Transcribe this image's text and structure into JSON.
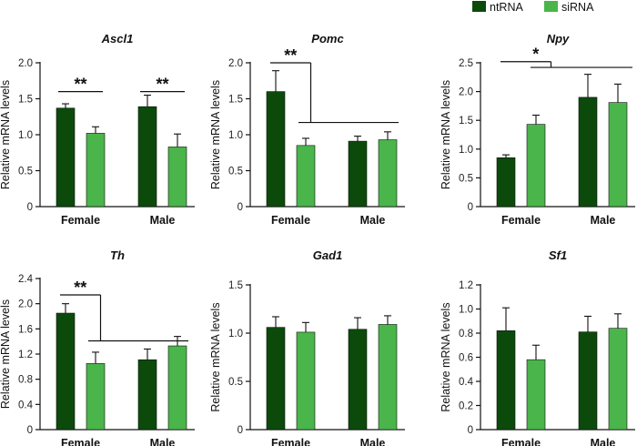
{
  "legend": {
    "items": [
      {
        "label": "ntRNA",
        "color": "#0b4a0b"
      },
      {
        "label": "siRNA",
        "color": "#4ab54a"
      }
    ]
  },
  "chart_data": [
    {
      "type": "bar",
      "title": "Ascl1",
      "ylabel": "Relative mRNA levels",
      "categories": [
        "Female",
        "Male"
      ],
      "ylim": [
        0,
        2.0
      ],
      "yticks": [
        "0",
        "0.5",
        "1.0",
        "1.5",
        "2.0"
      ],
      "series": [
        {
          "name": "ntRNA",
          "values": [
            1.37,
            1.39
          ],
          "errors": [
            0.06,
            0.16
          ]
        },
        {
          "name": "siRNA",
          "values": [
            1.02,
            0.83
          ],
          "errors": [
            0.09,
            0.18
          ]
        }
      ],
      "annotations": [
        {
          "label": "**",
          "kind": "pair",
          "group": 0,
          "level": 1.6
        },
        {
          "label": "**",
          "kind": "pair",
          "group": 1,
          "level": 1.6
        }
      ]
    },
    {
      "type": "bar",
      "title": "Pomc",
      "ylabel": "Relative mRNA levels",
      "categories": [
        "Female",
        "Male"
      ],
      "ylim": [
        0,
        2.0
      ],
      "yticks": [
        "0",
        "0.5",
        "1.0",
        "1.5",
        "2.0"
      ],
      "series": [
        {
          "name": "ntRNA",
          "values": [
            1.6,
            0.91
          ],
          "errors": [
            0.29,
            0.07
          ]
        },
        {
          "name": "siRNA",
          "values": [
            0.85,
            0.93
          ],
          "errors": [
            0.1,
            0.11
          ]
        }
      ],
      "annotations": [
        {
          "label": "**",
          "kind": "bracket",
          "level": 2.0,
          "level2": 1.17
        }
      ]
    },
    {
      "type": "bar",
      "title": "Npy",
      "ylabel": "Relative mRNA levels",
      "categories": [
        "Female",
        "Male"
      ],
      "ylim": [
        0,
        2.5
      ],
      "yticks": [
        "0",
        "0.5",
        "1.0",
        "1.5",
        "2.0",
        "2.5"
      ],
      "series": [
        {
          "name": "ntRNA",
          "values": [
            0.85,
            1.9
          ],
          "errors": [
            0.05,
            0.4
          ]
        },
        {
          "name": "siRNA",
          "values": [
            1.43,
            1.81
          ],
          "errors": [
            0.16,
            0.32
          ]
        }
      ],
      "annotations": [
        {
          "label": "*",
          "kind": "split",
          "level": 2.52,
          "level2": 2.42
        }
      ]
    },
    {
      "type": "bar",
      "title": "Th",
      "ylabel": "Relative mRNA levels",
      "categories": [
        "Female",
        "Male"
      ],
      "ylim": [
        0,
        2.4
      ],
      "yticks": [
        "0",
        "0.4",
        "0.8",
        "1.2",
        "1.6",
        "2.0",
        "2.4"
      ],
      "series": [
        {
          "name": "ntRNA",
          "values": [
            1.85,
            1.11
          ],
          "errors": [
            0.15,
            0.17
          ]
        },
        {
          "name": "siRNA",
          "values": [
            1.05,
            1.33
          ],
          "errors": [
            0.18,
            0.15
          ]
        }
      ],
      "annotations": [
        {
          "label": "**",
          "kind": "bracket",
          "level": 2.14,
          "level2": 1.41
        }
      ]
    },
    {
      "type": "bar",
      "title": "Gad1",
      "ylabel": "Relative mRNA levels",
      "categories": [
        "Female",
        "Male"
      ],
      "ylim": [
        0,
        1.5
      ],
      "yticks": [
        "0",
        "0.5",
        "1.0",
        "1.5"
      ],
      "series": [
        {
          "name": "ntRNA",
          "values": [
            1.06,
            1.04
          ],
          "errors": [
            0.11,
            0.12
          ]
        },
        {
          "name": "siRNA",
          "values": [
            1.01,
            1.09
          ],
          "errors": [
            0.1,
            0.09
          ]
        }
      ],
      "annotations": []
    },
    {
      "type": "bar",
      "title": "Sf1",
      "ylabel": "Relative mRNA levels",
      "categories": [
        "Female",
        "Male"
      ],
      "ylim": [
        0,
        1.2
      ],
      "yticks": [
        "0",
        "0.2",
        "0.4",
        "0.6",
        "0.8",
        "1.0",
        "1.2"
      ],
      "series": [
        {
          "name": "ntRNA",
          "values": [
            0.82,
            0.81
          ],
          "errors": [
            0.19,
            0.13
          ]
        },
        {
          "name": "siRNA",
          "values": [
            0.58,
            0.84
          ],
          "errors": [
            0.12,
            0.12
          ]
        }
      ],
      "annotations": []
    }
  ]
}
